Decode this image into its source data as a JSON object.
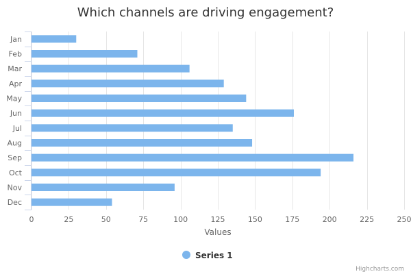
{
  "chart_data": {
    "type": "bar",
    "orientation": "horizontal",
    "title": "Which channels are driving engagement?",
    "categories": [
      "Jan",
      "Feb",
      "Mar",
      "Apr",
      "May",
      "Jun",
      "Jul",
      "Aug",
      "Sep",
      "Oct",
      "Nov",
      "Dec"
    ],
    "series": [
      {
        "name": "Series 1",
        "color": "#7cb5ec",
        "values": [
          30,
          71,
          106,
          129,
          144,
          176,
          135,
          148,
          216,
          194,
          96,
          54
        ]
      }
    ],
    "xlabel": "Values",
    "ylabel": "",
    "xlim": [
      0,
      250
    ],
    "xticks": [
      "0",
      "25",
      "50",
      "75",
      "100",
      "125",
      "150",
      "175",
      "200",
      "225",
      "250"
    ],
    "grid": true,
    "legend_position": "bottom-center"
  },
  "credits": "Highcharts.com"
}
